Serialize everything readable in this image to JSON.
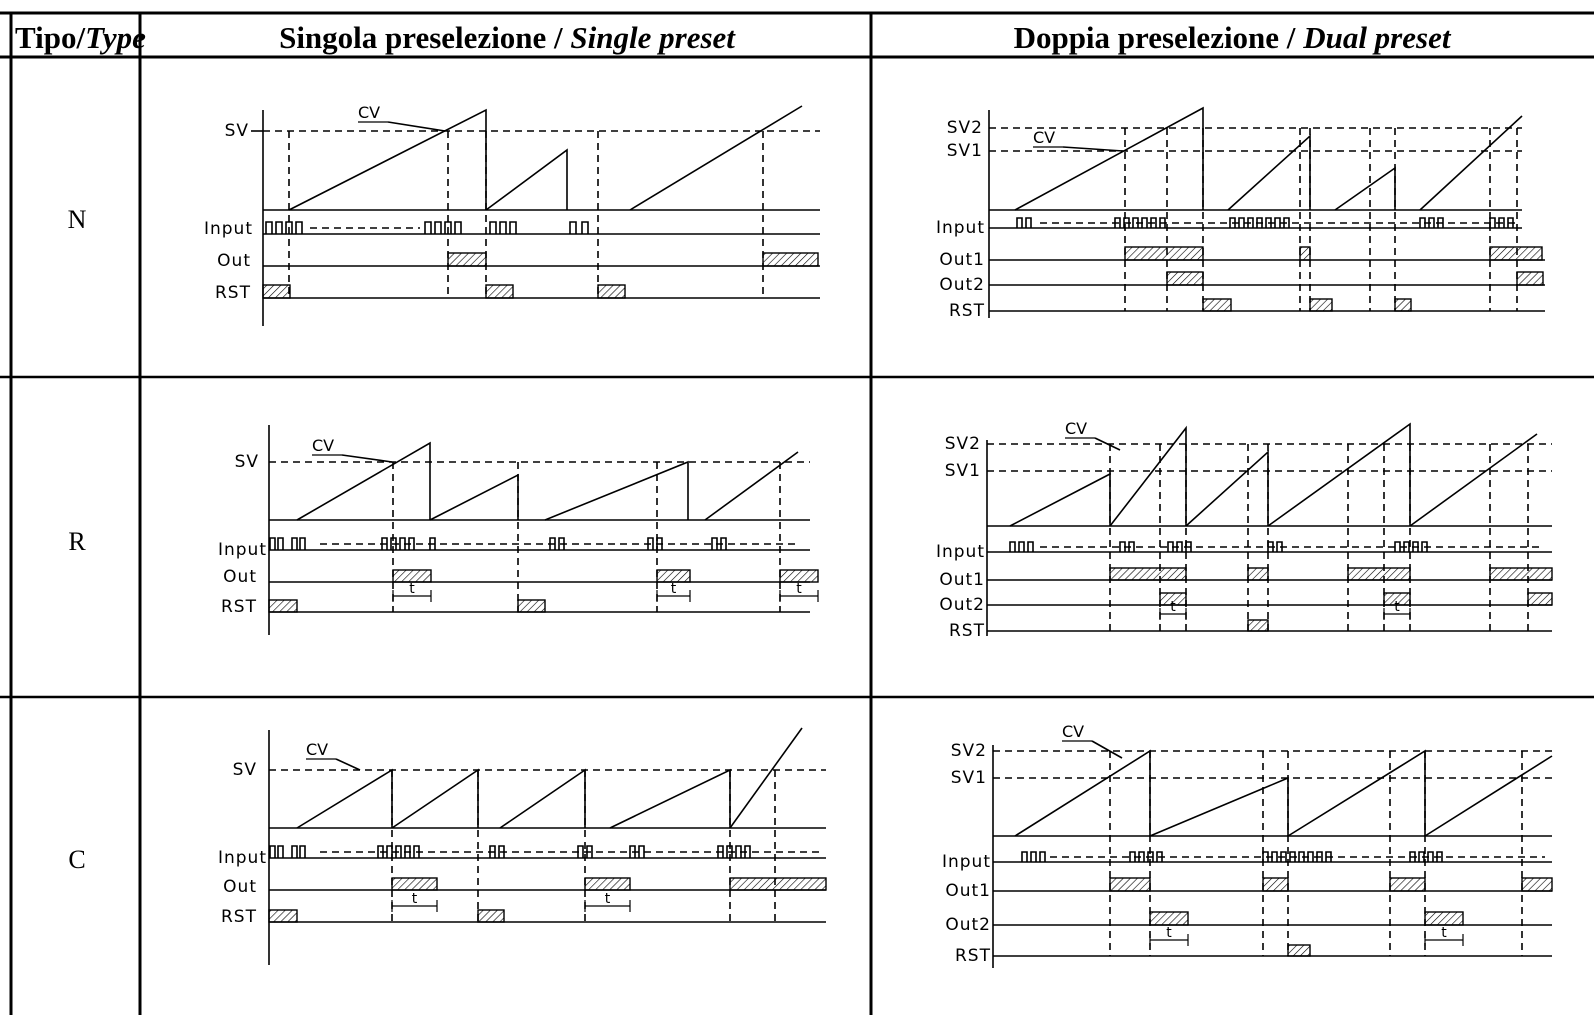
{
  "header": {
    "type_col": {
      "prefix": "Tipo/",
      "italic": "Type"
    },
    "single_col": {
      "prefix": "Singola preselezione / ",
      "italic": "Single preset"
    },
    "dual_col": {
      "prefix": "Doppia preselezione / ",
      "italic": "Dual preset"
    }
  },
  "rows": [
    {
      "type": "N"
    },
    {
      "type": "R"
    },
    {
      "type": "C"
    }
  ],
  "labels": {
    "sv": "SV",
    "sv1": "SV1",
    "sv2": "SV2",
    "cv": "CV",
    "input": "Input",
    "out": "Out",
    "out1": "Out1",
    "out2": "Out2",
    "rst": "RST",
    "t": "t"
  },
  "colors": {
    "ink": "#000000",
    "background": "#ffffff"
  }
}
